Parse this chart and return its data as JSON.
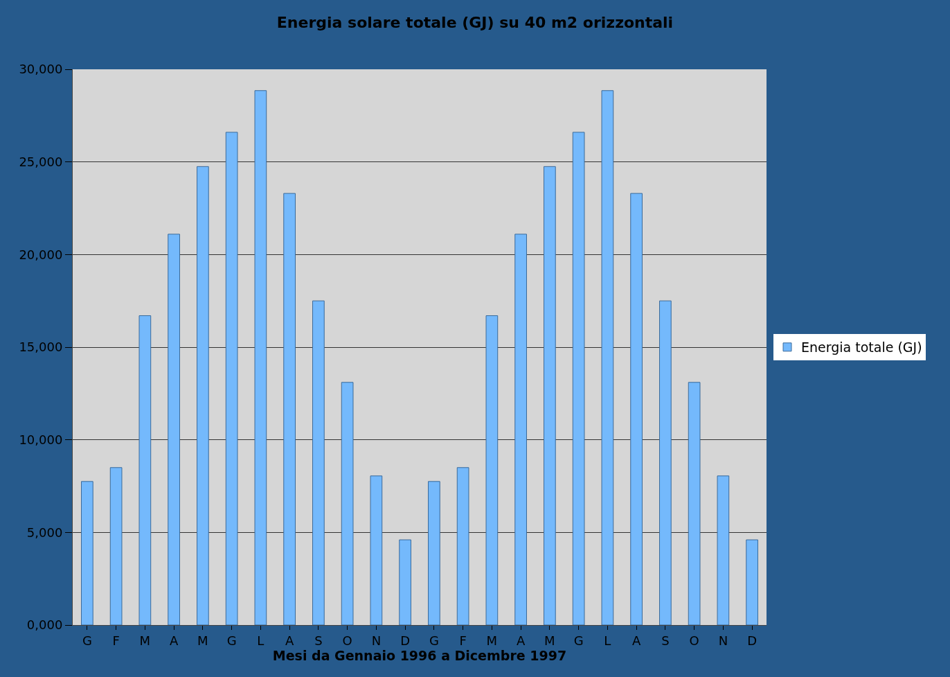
{
  "chart_data": {
    "type": "bar",
    "title": "Energia solare totale (GJ) su 40 m2 orizzontali",
    "xlabel": "Mesi da Gennaio 1996 a Dicembre 1997",
    "categories": [
      "G",
      "F",
      "M",
      "A",
      "M",
      "G",
      "L",
      "A",
      "S",
      "O",
      "N",
      "D",
      "G",
      "F",
      "M",
      "A",
      "M",
      "G",
      "L",
      "A",
      "S",
      "O",
      "N",
      "D"
    ],
    "series": [
      {
        "name": "Energia totale (GJ)",
        "color": "#74b9fc",
        "values": [
          7750,
          8500,
          16700,
          21100,
          24750,
          26600,
          28850,
          23300,
          17500,
          13100,
          8050,
          4600,
          7750,
          8500,
          16700,
          21100,
          24750,
          26600,
          28850,
          23300,
          17500,
          13100,
          8050,
          4600
        ]
      }
    ],
    "ylim": [
      0,
      30000
    ],
    "yticks": [
      {
        "value": 0,
        "label": "0,000"
      },
      {
        "value": 5000,
        "label": "5,000"
      },
      {
        "value": 10000,
        "label": "10,000"
      },
      {
        "value": 15000,
        "label": "15,000"
      },
      {
        "value": 20000,
        "label": "20,000"
      },
      {
        "value": 25000,
        "label": "25,000"
      },
      {
        "value": 30000,
        "label": "30,000"
      }
    ],
    "grid": "y",
    "legend": "right"
  }
}
